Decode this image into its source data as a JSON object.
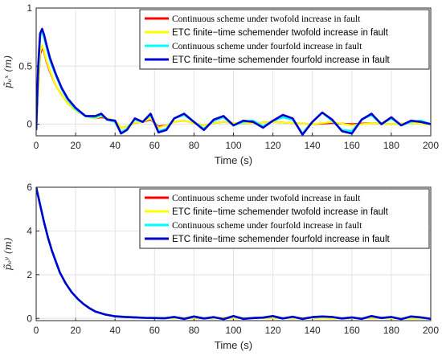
{
  "colors": {
    "red": "#ff0000",
    "yellow": "#ffff00",
    "cyan": "#00ffff",
    "blue": "#0000cd"
  },
  "chart_data": [
    {
      "type": "line",
      "xlabel": "Time (s)",
      "ylabel": "p̃ₑˣ (m)",
      "xlim": [
        0,
        200
      ],
      "ylim": [
        -0.1,
        1
      ],
      "xticks": [
        "0",
        "20",
        "40",
        "60",
        "80",
        "100",
        "120",
        "140",
        "160",
        "180",
        "200"
      ],
      "yticks": [
        "0",
        "0.5",
        "1"
      ],
      "grid": true,
      "legend_position": "top-right",
      "series": [
        {
          "name": "Continuous scheme under twofold increase in fault",
          "color": "#ff0000",
          "x": [
            0,
            1,
            2,
            3,
            4,
            5,
            7,
            10,
            13,
            16,
            20,
            25,
            30,
            33,
            36,
            40,
            43,
            46,
            50,
            54,
            58,
            62,
            66,
            70,
            75,
            80,
            85,
            90,
            95,
            100,
            110,
            120,
            130,
            140,
            150,
            160,
            170,
            180,
            190,
            200
          ],
          "y": [
            -0.05,
            0.3,
            0.6,
            0.66,
            0.62,
            0.55,
            0.45,
            0.33,
            0.25,
            0.18,
            0.12,
            0.07,
            0.05,
            0.06,
            0.05,
            0.03,
            -0.03,
            -0.02,
            0.01,
            0.02,
            0.04,
            -0.02,
            -0.01,
            0.02,
            0.03,
            0.01,
            -0.01,
            0.01,
            0.02,
            0.01,
            0.01,
            0.02,
            0.01,
            0.0,
            0.01,
            0.0,
            0.01,
            0.0,
            0.01,
            0.0
          ]
        },
        {
          "name": "ETC finite−time schemender twofold increase in fault",
          "color": "#ffff00",
          "x": [
            0,
            1,
            2,
            3,
            4,
            5,
            7,
            10,
            13,
            16,
            20,
            25,
            30,
            33,
            36,
            40,
            43,
            46,
            50,
            54,
            58,
            62,
            66,
            70,
            75,
            80,
            85,
            90,
            95,
            100,
            110,
            120,
            130,
            140,
            150,
            160,
            170,
            180,
            190,
            200
          ],
          "y": [
            -0.05,
            0.3,
            0.62,
            0.68,
            0.63,
            0.56,
            0.46,
            0.33,
            0.25,
            0.18,
            0.12,
            0.07,
            0.05,
            0.07,
            0.05,
            0.03,
            -0.03,
            -0.02,
            0.01,
            0.02,
            0.05,
            -0.03,
            -0.01,
            0.02,
            0.03,
            0.01,
            -0.01,
            0.01,
            0.02,
            0.01,
            0.01,
            0.02,
            0.01,
            0.0,
            0.02,
            -0.01,
            0.01,
            0.0,
            0.01,
            0.0
          ]
        },
        {
          "name": "Continuous scheme under fourfold increase in fault",
          "color": "#00ffff",
          "x": [
            0,
            1,
            2,
            3,
            4,
            5,
            7,
            10,
            13,
            16,
            20,
            25,
            30,
            33,
            36,
            40,
            43,
            46,
            50,
            54,
            58,
            62,
            66,
            70,
            75,
            80,
            85,
            90,
            95,
            100,
            105,
            110,
            115,
            120,
            125,
            130,
            135,
            140,
            145,
            150,
            155,
            160,
            165,
            170,
            175,
            180,
            185,
            190,
            195,
            200
          ],
          "y": [
            -0.05,
            0.45,
            0.75,
            0.8,
            0.75,
            0.68,
            0.55,
            0.42,
            0.3,
            0.21,
            0.13,
            0.07,
            0.06,
            0.08,
            0.04,
            0.02,
            -0.07,
            -0.04,
            0.04,
            0.02,
            0.08,
            -0.06,
            -0.04,
            0.05,
            0.08,
            0.02,
            -0.04,
            0.03,
            0.06,
            -0.01,
            0.02,
            0.03,
            -0.02,
            0.03,
            0.06,
            0.04,
            -0.08,
            0.02,
            0.1,
            0.03,
            -0.05,
            -0.06,
            0.04,
            0.08,
            0.0,
            0.05,
            -0.01,
            0.02,
            0.03,
            0.0
          ]
        },
        {
          "name": "ETC finite−time schemender fourfold increase in fault",
          "color": "#0000cd",
          "x": [
            0,
            1,
            2,
            3,
            4,
            5,
            7,
            10,
            13,
            16,
            20,
            25,
            30,
            33,
            36,
            40,
            43,
            46,
            50,
            54,
            58,
            62,
            66,
            70,
            75,
            80,
            85,
            90,
            95,
            100,
            105,
            110,
            115,
            120,
            125,
            130,
            135,
            140,
            145,
            150,
            155,
            160,
            165,
            170,
            175,
            180,
            185,
            190,
            195,
            200
          ],
          "y": [
            -0.05,
            0.5,
            0.78,
            0.82,
            0.77,
            0.7,
            0.57,
            0.43,
            0.31,
            0.22,
            0.14,
            0.07,
            0.07,
            0.09,
            0.04,
            0.03,
            -0.08,
            -0.05,
            0.05,
            0.02,
            0.09,
            -0.07,
            -0.05,
            0.05,
            0.09,
            0.02,
            -0.05,
            0.04,
            0.07,
            -0.01,
            0.03,
            0.02,
            -0.03,
            0.03,
            0.08,
            0.05,
            -0.09,
            0.02,
            0.1,
            0.04,
            -0.06,
            -0.08,
            0.04,
            0.09,
            0.0,
            0.06,
            -0.01,
            0.03,
            0.02,
            0.0
          ]
        }
      ]
    },
    {
      "type": "line",
      "xlabel": "Time (s)",
      "ylabel": "p̃ₑʸ (m)",
      "xlim": [
        0,
        200
      ],
      "ylim": [
        -0.1,
        6
      ],
      "xticks": [
        "0",
        "20",
        "40",
        "60",
        "80",
        "100",
        "120",
        "140",
        "160",
        "180",
        "200"
      ],
      "yticks": [
        "0",
        "2",
        "4",
        "6"
      ],
      "grid": true,
      "legend_position": "top-right",
      "series": [
        {
          "name": "Continuous scheme under twofold increase in fault",
          "color": "#ff0000",
          "x": [
            0,
            2,
            4,
            6,
            8,
            10,
            12,
            15,
            18,
            21,
            24,
            27,
            30,
            35,
            40,
            45,
            50,
            55,
            60,
            70,
            80,
            90,
            100,
            110,
            120,
            130,
            140,
            150,
            160,
            170,
            180,
            190,
            200
          ],
          "y": [
            6.0,
            5.2,
            4.4,
            3.7,
            3.1,
            2.6,
            2.1,
            1.6,
            1.2,
            0.9,
            0.66,
            0.47,
            0.32,
            0.18,
            0.1,
            0.07,
            0.05,
            0.03,
            0.02,
            0.02,
            0.01,
            0.01,
            0.02,
            0.01,
            0.02,
            0.01,
            0.02,
            0.01,
            0.01,
            0.02,
            0.01,
            0.01,
            0.0
          ]
        },
        {
          "name": "ETC finite−time schemender twofold increase in fault",
          "color": "#ffff00",
          "x": [
            0,
            2,
            4,
            6,
            8,
            10,
            12,
            15,
            18,
            21,
            24,
            27,
            30,
            35,
            40,
            45,
            50,
            55,
            60,
            70,
            80,
            90,
            100,
            110,
            120,
            130,
            140,
            150,
            160,
            170,
            180,
            190,
            200
          ],
          "y": [
            6.0,
            5.2,
            4.4,
            3.7,
            3.1,
            2.6,
            2.1,
            1.6,
            1.2,
            0.9,
            0.66,
            0.47,
            0.32,
            0.18,
            0.1,
            0.07,
            0.05,
            0.03,
            0.02,
            0.01,
            0.02,
            0.01,
            0.02,
            0.01,
            0.02,
            0.01,
            0.02,
            0.0,
            0.01,
            0.02,
            0.01,
            0.0,
            0.0
          ]
        },
        {
          "name": "Continuous scheme under fourfold increase in fault",
          "color": "#00ffff",
          "x": [
            0,
            2,
            4,
            6,
            8,
            10,
            12,
            15,
            18,
            21,
            24,
            27,
            30,
            35,
            40,
            45,
            50,
            55,
            60,
            65,
            70,
            75,
            80,
            85,
            90,
            95,
            100,
            105,
            110,
            115,
            120,
            125,
            130,
            135,
            140,
            145,
            150,
            155,
            160,
            165,
            170,
            175,
            180,
            185,
            190,
            195,
            200
          ],
          "y": [
            6.0,
            5.2,
            4.4,
            3.7,
            3.1,
            2.6,
            2.1,
            1.6,
            1.2,
            0.9,
            0.66,
            0.47,
            0.32,
            0.18,
            0.1,
            0.07,
            0.05,
            0.03,
            0.02,
            0.0,
            0.06,
            -0.02,
            0.08,
            0.0,
            0.05,
            -0.03,
            0.1,
            -0.02,
            0.02,
            0.04,
            0.1,
            0.0,
            0.07,
            -0.02,
            0.05,
            0.08,
            0.06,
            0.0,
            0.04,
            -0.02,
            0.1,
            0.02,
            0.06,
            -0.03,
            0.08,
            0.04,
            -0.01
          ]
        },
        {
          "name": "ETC finite−time schemender fourfold increase in fault",
          "color": "#0000cd",
          "x": [
            0,
            2,
            4,
            6,
            8,
            10,
            12,
            15,
            18,
            21,
            24,
            27,
            30,
            35,
            40,
            45,
            50,
            55,
            60,
            65,
            70,
            75,
            80,
            85,
            90,
            95,
            100,
            105,
            110,
            115,
            120,
            125,
            130,
            135,
            140,
            145,
            150,
            155,
            160,
            165,
            170,
            175,
            180,
            185,
            190,
            195,
            200
          ],
          "y": [
            6.0,
            5.2,
            4.4,
            3.7,
            3.1,
            2.6,
            2.1,
            1.6,
            1.2,
            0.9,
            0.66,
            0.47,
            0.32,
            0.18,
            0.1,
            0.07,
            0.05,
            0.03,
            0.02,
            0.01,
            0.07,
            -0.02,
            0.09,
            0.0,
            0.06,
            -0.03,
            0.11,
            -0.02,
            0.02,
            0.04,
            0.11,
            0.0,
            0.08,
            -0.02,
            0.06,
            0.09,
            0.07,
            0.0,
            0.05,
            -0.02,
            0.11,
            0.02,
            0.07,
            -0.03,
            0.09,
            0.05,
            -0.02
          ]
        }
      ]
    }
  ]
}
